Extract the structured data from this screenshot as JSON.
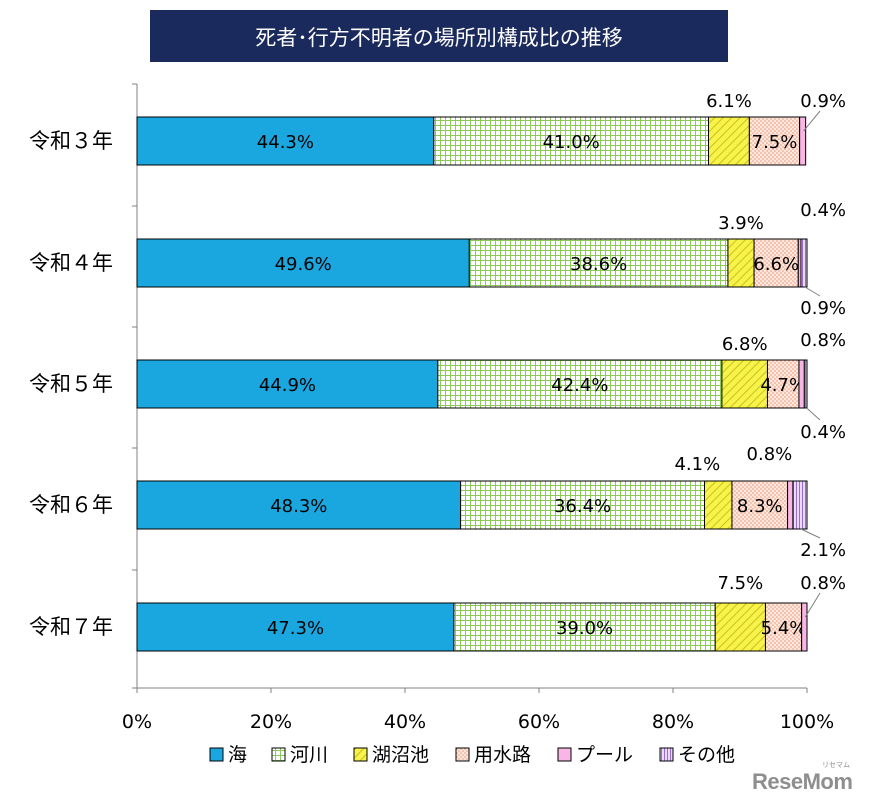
{
  "chart_data": {
    "type": "bar",
    "orientation": "horizontal",
    "stacked": true,
    "title": "死者･行方不明者の場所別構成比の推移",
    "categories": [
      "令和３年",
      "令和４年",
      "令和５年",
      "令和６年",
      "令和７年"
    ],
    "series": [
      {
        "name": "海",
        "color": "#1aa7e0",
        "pattern": "solid",
        "values": [
          44.3,
          49.6,
          44.9,
          48.3,
          47.3
        ],
        "labels": [
          "44.3%",
          "49.6%",
          "44.9%",
          "48.3%",
          "47.3%"
        ]
      },
      {
        "name": "河川",
        "color": "#9bd56b",
        "pattern": "grid",
        "values": [
          41.0,
          38.6,
          42.4,
          36.4,
          39.0
        ],
        "labels": [
          "41.0%",
          "38.6%",
          "42.4%",
          "36.4%",
          "39.0%"
        ]
      },
      {
        "name": "湖沼池",
        "color": "#f2ee3a",
        "pattern": "diagonal",
        "values": [
          6.1,
          3.9,
          6.8,
          4.1,
          7.5
        ],
        "labels": [
          "6.1%",
          "3.9%",
          "6.8%",
          "4.1%",
          "7.5%"
        ]
      },
      {
        "name": "用水路",
        "color": "#f5b7a0",
        "pattern": "dots",
        "values": [
          7.5,
          6.6,
          4.7,
          8.3,
          5.4
        ],
        "labels": [
          "7.5%",
          "6.6%",
          "4.7%",
          "8.3%",
          "5.4%"
        ]
      },
      {
        "name": "プール",
        "color": "#f8b6e6",
        "pattern": "solid",
        "values": [
          0.9,
          0.4,
          0.8,
          0.8,
          0.8
        ],
        "labels": [
          "0.9%",
          "0.4%",
          "0.8%",
          "0.8%",
          "0.8%"
        ]
      },
      {
        "name": "その他",
        "color": "#c9a6ea",
        "pattern": "vlines",
        "values": [
          0.0,
          0.9,
          0.4,
          2.1,
          0.0
        ],
        "labels": [
          "",
          "0.9%",
          "0.4%",
          "2.1%",
          ""
        ]
      }
    ],
    "xlim": [
      0,
      100
    ],
    "xticks": [
      0,
      20,
      40,
      60,
      80,
      100
    ],
    "xtick_labels": [
      "0%",
      "20%",
      "40%",
      "60%",
      "80%",
      "100%"
    ],
    "legend_position": "bottom"
  },
  "watermark": "ReseMom",
  "watermark_sub": "リセマム"
}
